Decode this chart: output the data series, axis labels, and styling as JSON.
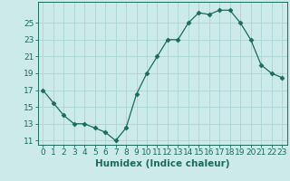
{
  "x": [
    0,
    1,
    2,
    3,
    4,
    5,
    6,
    7,
    8,
    9,
    10,
    11,
    12,
    13,
    14,
    15,
    16,
    17,
    18,
    19,
    20,
    21,
    22,
    23
  ],
  "y": [
    17,
    15.5,
    14,
    13,
    13,
    12.5,
    12,
    11,
    12.5,
    16.5,
    19,
    21,
    23,
    23,
    25,
    26.2,
    26,
    26.5,
    26.5,
    25,
    23,
    20,
    19,
    18.5
  ],
  "line_color": "#1a6b5a",
  "marker": "D",
  "marker_size": 2.5,
  "background_color": "#cceaea",
  "grid_color": "#aad4d4",
  "xlabel": "Humidex (Indice chaleur)",
  "xlim": [
    -0.5,
    23.5
  ],
  "ylim": [
    10.5,
    27.5
  ],
  "yticks": [
    11,
    13,
    15,
    17,
    19,
    21,
    23,
    25
  ],
  "xticks": [
    0,
    1,
    2,
    3,
    4,
    5,
    6,
    7,
    8,
    9,
    10,
    11,
    12,
    13,
    14,
    15,
    16,
    17,
    18,
    19,
    20,
    21,
    22,
    23
  ],
  "tick_color": "#1a6b5a",
  "label_color": "#1a6b5a",
  "xlabel_fontsize": 7.5,
  "tick_fontsize": 6.5
}
